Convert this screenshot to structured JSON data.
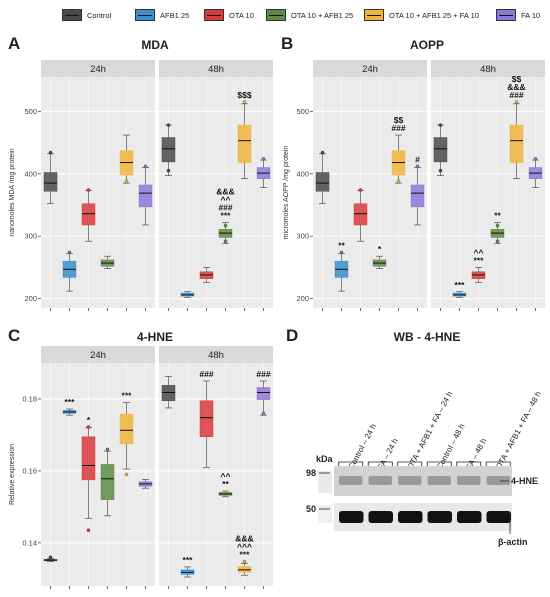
{
  "legend": [
    {
      "name": "Control",
      "color": "#4a4a4a"
    },
    {
      "name": "AFB1 25",
      "color": "#3a8fcf"
    },
    {
      "name": "OTA 10",
      "color": "#d93a3a"
    },
    {
      "name": "OTA 10 + AFB1 25",
      "color": "#5e8a45"
    },
    {
      "name": "OTA 10 + AFB1 25 + FA 10",
      "color": "#f0b43c"
    },
    {
      "name": "FA 10",
      "color": "#8e78d8"
    }
  ],
  "panels": {
    "A": {
      "letter": "A",
      "title": "MDA"
    },
    "B": {
      "letter": "B",
      "title": "AOPP"
    },
    "C": {
      "letter": "C",
      "title": "4-HNE"
    },
    "D": {
      "letter": "D",
      "title": "WB - 4-HNE"
    }
  },
  "chart_data": [
    {
      "id": "A",
      "type": "box",
      "title": "MDA",
      "ylabel": "nanomoles MDA /mg protein",
      "ylim": [
        185,
        555
      ],
      "yticks": [
        200,
        300,
        400,
        500
      ],
      "facets": [
        "24h",
        "48h"
      ],
      "groups": [
        "Control",
        "AFB1 25",
        "OTA 10",
        "OTA 10 + AFB1 25",
        "OTA 10 + AFB1 25 + FA 10",
        "FA 10"
      ],
      "series": [
        {
          "facet": "24h",
          "boxes": [
            {
              "group": "Control",
              "min": 352,
              "q1": 372,
              "median": 385,
              "q3": 402,
              "max": 432,
              "points": [
                434
              ]
            },
            {
              "group": "AFB1 25",
              "min": 212,
              "q1": 234,
              "median": 247,
              "q3": 260,
              "max": 272,
              "points": [
                274
              ]
            },
            {
              "group": "OTA 10",
              "min": 292,
              "q1": 318,
              "median": 336,
              "q3": 352,
              "max": 373,
              "points": [
                374
              ]
            },
            {
              "group": "OTA 10 + AFB1 25",
              "min": 248,
              "q1": 252,
              "median": 257,
              "q3": 262,
              "max": 268,
              "points": []
            },
            {
              "group": "OTA 10 + AFB1 25 + FA 10",
              "min": 385,
              "q1": 398,
              "median": 418,
              "q3": 437,
              "max": 462,
              "points": [
                388
              ]
            },
            {
              "group": "FA 10",
              "min": 318,
              "q1": 347,
              "median": 369,
              "q3": 382,
              "max": 410,
              "points": [
                412
              ]
            }
          ],
          "annotations": []
        },
        {
          "facet": "48h",
          "boxes": [
            {
              "group": "Control",
              "min": 397,
              "q1": 419,
              "median": 440,
              "q3": 458,
              "max": 478,
              "points": [
                478,
                405
              ]
            },
            {
              "group": "AFB1 25",
              "min": 202,
              "q1": 204,
              "median": 206,
              "q3": 209,
              "max": 211,
              "points": []
            },
            {
              "group": "OTA 10",
              "min": 226,
              "q1": 232,
              "median": 238,
              "q3": 243,
              "max": 250,
              "points": []
            },
            {
              "group": "OTA 10 + AFB1 25",
              "min": 288,
              "q1": 298,
              "median": 305,
              "q3": 311,
              "max": 322,
              "points": [
                317,
                292
              ]
            },
            {
              "group": "OTA 10 + AFB1 25 + FA 10",
              "min": 392,
              "q1": 418,
              "median": 453,
              "q3": 478,
              "max": 512,
              "points": [
                515
              ]
            },
            {
              "group": "FA 10",
              "min": 378,
              "q1": 392,
              "median": 401,
              "q3": 410,
              "max": 422,
              "points": [
                424
              ]
            }
          ],
          "annotations": [
            {
              "group": "OTA 10 + AFB1 25",
              "lines": [
                "&&&",
                "^^",
                "###",
                "***"
              ]
            },
            {
              "group": "OTA 10 + AFB1 25 + FA 10",
              "lines": [
                "$$$"
              ]
            }
          ]
        }
      ]
    },
    {
      "id": "B",
      "type": "box",
      "title": "AOPP",
      "ylabel": "micromoles AOPP /mg protein",
      "ylim": [
        185,
        555
      ],
      "yticks": [
        200,
        300,
        400,
        500
      ],
      "facets": [
        "24h",
        "48h"
      ],
      "groups": [
        "Control",
        "AFB1 25",
        "OTA 10",
        "OTA 10 + AFB1 25",
        "OTA 10 + AFB1 25 + FA 10",
        "FA 10"
      ],
      "series": [
        {
          "facet": "24h",
          "boxes": [
            {
              "group": "Control",
              "min": 352,
              "q1": 372,
              "median": 385,
              "q3": 402,
              "max": 432,
              "points": [
                434
              ]
            },
            {
              "group": "AFB1 25",
              "min": 212,
              "q1": 234,
              "median": 247,
              "q3": 260,
              "max": 272,
              "points": [
                274
              ]
            },
            {
              "group": "OTA 10",
              "min": 292,
              "q1": 318,
              "median": 336,
              "q3": 352,
              "max": 373,
              "points": [
                374
              ]
            },
            {
              "group": "OTA 10 + AFB1 25",
              "min": 248,
              "q1": 252,
              "median": 257,
              "q3": 262,
              "max": 268,
              "points": []
            },
            {
              "group": "OTA 10 + AFB1 25 + FA 10",
              "min": 385,
              "q1": 398,
              "median": 418,
              "q3": 437,
              "max": 462,
              "points": [
                388
              ]
            },
            {
              "group": "FA 10",
              "min": 318,
              "q1": 347,
              "median": 369,
              "q3": 382,
              "max": 410,
              "points": [
                412
              ]
            }
          ],
          "annotations": [
            {
              "group": "AFB1 25",
              "lines": [
                "**"
              ]
            },
            {
              "group": "OTA 10 + AFB1 25",
              "lines": [
                "*"
              ]
            },
            {
              "group": "OTA 10 + AFB1 25 + FA 10",
              "lines": [
                "$$",
                "###"
              ]
            },
            {
              "group": "FA 10",
              "lines": [
                "#"
              ]
            }
          ]
        },
        {
          "facet": "48h",
          "boxes": [
            {
              "group": "Control",
              "min": 397,
              "q1": 419,
              "median": 440,
              "q3": 458,
              "max": 478,
              "points": [
                478,
                405
              ]
            },
            {
              "group": "AFB1 25",
              "min": 202,
              "q1": 204,
              "median": 206,
              "q3": 209,
              "max": 211,
              "points": []
            },
            {
              "group": "OTA 10",
              "min": 226,
              "q1": 232,
              "median": 238,
              "q3": 243,
              "max": 250,
              "points": []
            },
            {
              "group": "OTA 10 + AFB1 25",
              "min": 288,
              "q1": 298,
              "median": 305,
              "q3": 311,
              "max": 322,
              "points": [
                317,
                292
              ]
            },
            {
              "group": "OTA 10 + AFB1 25 + FA 10",
              "min": 392,
              "q1": 418,
              "median": 453,
              "q3": 478,
              "max": 512,
              "points": [
                515
              ]
            },
            {
              "group": "FA 10",
              "min": 378,
              "q1": 392,
              "median": 401,
              "q3": 410,
              "max": 422,
              "points": [
                424
              ]
            }
          ],
          "annotations": [
            {
              "group": "AFB1 25",
              "lines": [
                "***"
              ]
            },
            {
              "group": "OTA 10",
              "lines": [
                "^^",
                "***"
              ]
            },
            {
              "group": "OTA 10 + AFB1 25",
              "lines": [
                "**"
              ]
            },
            {
              "group": "OTA 10 + AFB1 25 + FA 10",
              "lines": [
                "$$",
                "&&&",
                "###"
              ]
            }
          ]
        }
      ]
    },
    {
      "id": "C",
      "type": "box",
      "title": "4-HNE",
      "ylabel": "Relative expression",
      "ylim": [
        0.128,
        0.19
      ],
      "yticks": [
        0.14,
        0.16,
        0.18
      ],
      "tick_decimals": 2,
      "facets": [
        "24h",
        "48h"
      ],
      "groups": [
        "Control",
        "AFB1 25",
        "OTA 10",
        "OTA 10 + AFB1 25",
        "OTA 10 + AFB1 25 + FA 10",
        "FA 10"
      ],
      "series": [
        {
          "facet": "24h",
          "boxes": [
            {
              "group": "Control",
              "min": 0.1348,
              "q1": 0.135,
              "median": 0.1352,
              "q3": 0.1354,
              "max": 0.1356,
              "points": [
                0.136
              ]
            },
            {
              "group": "AFB1 25",
              "min": 0.1755,
              "q1": 0.176,
              "median": 0.1764,
              "q3": 0.1768,
              "max": 0.1772,
              "points": []
            },
            {
              "group": "OTA 10",
              "min": 0.1468,
              "q1": 0.1575,
              "median": 0.1615,
              "q3": 0.1695,
              "max": 0.172,
              "points": [
                0.1435,
                0.1722
              ]
            },
            {
              "group": "OTA 10 + AFB1 25",
              "min": 0.1475,
              "q1": 0.152,
              "median": 0.1578,
              "q3": 0.1618,
              "max": 0.1655,
              "points": [
                0.166
              ]
            },
            {
              "group": "OTA 10 + AFB1 25 + FA 10",
              "min": 0.1605,
              "q1": 0.1675,
              "median": 0.1713,
              "q3": 0.1758,
              "max": 0.179,
              "points": [
                0.159
              ]
            },
            {
              "group": "FA 10",
              "min": 0.1552,
              "q1": 0.1557,
              "median": 0.1564,
              "q3": 0.157,
              "max": 0.1576,
              "points": []
            }
          ],
          "annotations": [
            {
              "group": "AFB1 25",
              "lines": [
                "***"
              ]
            },
            {
              "group": "OTA 10",
              "lines": [
                "*"
              ]
            },
            {
              "group": "OTA 10 + AFB1 25 + FA 10",
              "lines": [
                "***"
              ]
            }
          ]
        },
        {
          "facet": "48h",
          "boxes": [
            {
              "group": "Control",
              "min": 0.1775,
              "q1": 0.1795,
              "median": 0.1818,
              "q3": 0.1838,
              "max": 0.1862,
              "points": []
            },
            {
              "group": "AFB1 25",
              "min": 0.1305,
              "q1": 0.1312,
              "median": 0.1318,
              "q3": 0.1325,
              "max": 0.1333,
              "points": []
            },
            {
              "group": "OTA 10",
              "min": 0.161,
              "q1": 0.1695,
              "median": 0.1748,
              "q3": 0.1795,
              "max": 0.185,
              "points": []
            },
            {
              "group": "OTA 10 + AFB1 25",
              "min": 0.1528,
              "q1": 0.1532,
              "median": 0.1536,
              "q3": 0.154,
              "max": 0.1544,
              "points": []
            },
            {
              "group": "OTA 10 + AFB1 25 + FA 10",
              "min": 0.131,
              "q1": 0.1318,
              "median": 0.1325,
              "q3": 0.1334,
              "max": 0.1343,
              "points": [
                0.1348
              ]
            },
            {
              "group": "FA 10",
              "min": 0.1755,
              "q1": 0.1798,
              "median": 0.1818,
              "q3": 0.1832,
              "max": 0.185,
              "points": [
                0.176
              ]
            }
          ],
          "annotations": [
            {
              "group": "AFB1 25",
              "lines": [
                "***"
              ]
            },
            {
              "group": "OTA 10",
              "lines": [
                "###"
              ]
            },
            {
              "group": "OTA 10 + AFB1 25",
              "lines": [
                "^^",
                "**"
              ]
            },
            {
              "group": "OTA 10 + AFB1 25 + FA 10",
              "lines": [
                "&&&",
                "^^^",
                "***"
              ]
            },
            {
              "group": "FA 10",
              "lines": [
                "###"
              ]
            }
          ]
        }
      ]
    }
  ],
  "western_blot": {
    "lanes": [
      "Control – 24 h",
      "FA – 24 h",
      "OTA + AFB1 + FA – 24 h",
      "Control – 48 h",
      "FA – 48 h",
      "OTA + AFB1 + FA – 48 h"
    ],
    "kda_label": "kDa",
    "markers": [
      {
        "value": "98"
      },
      {
        "value": "50"
      }
    ],
    "bands": [
      "4-HNE",
      "β-actin"
    ]
  }
}
